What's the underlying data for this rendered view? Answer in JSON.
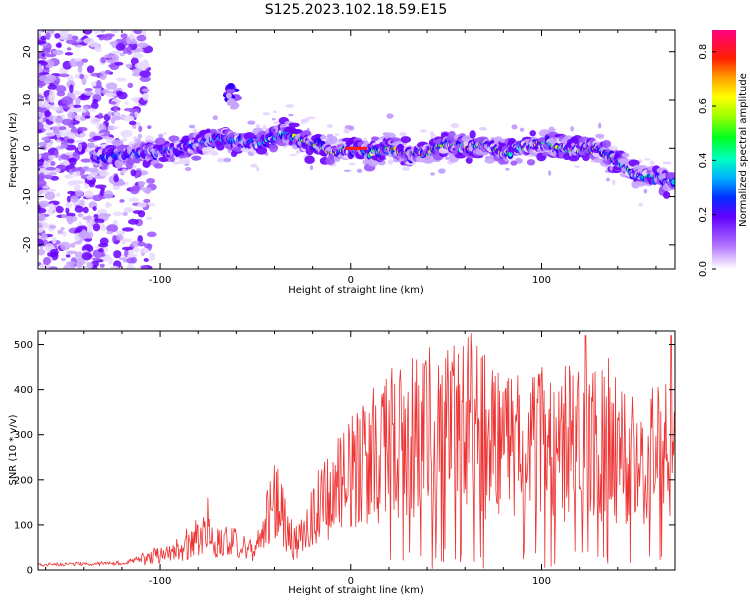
{
  "title": "S125.2023.102.18.59.E15",
  "chart_data": [
    {
      "type": "heatmap",
      "xlabel": "Height of straight line (km)",
      "ylabel": "Frequency (Hz)",
      "xlim": [
        -164,
        170
      ],
      "ylim": [
        -25,
        24.5
      ],
      "xticks": [
        -100,
        0,
        100
      ],
      "yticks": [
        -20,
        -10,
        0,
        10,
        20
      ],
      "colorbar": {
        "label": "Normalized spectral amplitude",
        "range": [
          0,
          0.88
        ],
        "ticks": [
          0.0,
          0.2,
          0.4,
          0.6,
          0.8
        ]
      },
      "ridge": {
        "x": [
          -130,
          -110,
          -90,
          -70,
          -50,
          -35,
          -20,
          -10,
          0,
          10,
          20,
          30,
          40,
          50,
          60,
          70,
          80,
          90,
          100,
          110,
          120,
          130,
          140,
          150,
          160,
          170
        ],
        "y": [
          -2,
          -1,
          0,
          2,
          1,
          3,
          1,
          -1,
          0,
          -1,
          0,
          -1,
          -1,
          1,
          0,
          1,
          -1,
          0,
          1,
          0,
          -0.5,
          0,
          -3,
          -6,
          -6,
          -7
        ]
      }
    },
    {
      "type": "line",
      "xlabel": "Height of straight line (km)",
      "ylabel": "SNR (10 * v/v)",
      "xlim": [
        -164,
        170
      ],
      "ylim": [
        0,
        530
      ],
      "xticks": [
        -100,
        0,
        100
      ],
      "yticks": [
        0,
        100,
        200,
        300,
        400,
        500
      ],
      "color": "#ee3333",
      "envelope": {
        "x": [
          -164,
          -120,
          -105,
          -90,
          -80,
          -70,
          -60,
          -50,
          -45,
          -38,
          -30,
          -25,
          -20,
          -10,
          0,
          10,
          20,
          30,
          40,
          50,
          60,
          70,
          80,
          90,
          100,
          110,
          120,
          130,
          140,
          150,
          160,
          170
        ],
        "y": [
          12,
          15,
          30,
          50,
          80,
          80,
          60,
          40,
          120,
          180,
          60,
          90,
          130,
          190,
          230,
          270,
          300,
          320,
          330,
          330,
          350,
          320,
          310,
          300,
          300,
          300,
          310,
          300,
          290,
          280,
          270,
          280
        ]
      },
      "peaks": [
        {
          "x": -75,
          "y": 160
        },
        {
          "x": -40,
          "y": 232
        },
        {
          "x": 63,
          "y": 525
        },
        {
          "x": 123,
          "y": 520
        },
        {
          "x": 135,
          "y": 470
        },
        {
          "x": 168,
          "y": 520
        }
      ]
    }
  ]
}
